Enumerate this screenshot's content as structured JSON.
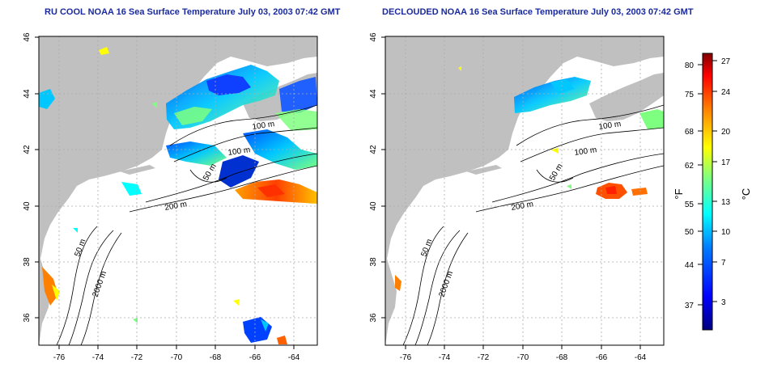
{
  "left_panel": {
    "title": "RU COOL NOAA 16 Sea Surface Temperature July 03, 2003 07:42 GMT",
    "x_ticks": [
      "-76",
      "-74",
      "-72",
      "-70",
      "-68",
      "-66",
      "-64"
    ],
    "y_ticks": [
      "46",
      "44",
      "42",
      "40",
      "38",
      "36"
    ],
    "contour_labels": [
      "100 m",
      "100 m",
      "50 m",
      "200 m",
      "50 m",
      "2000 m"
    ]
  },
  "right_panel": {
    "title": "DECLOUDED NOAA 16 Sea Surface Temperature July 03, 2003 07:42 GMT",
    "x_ticks": [
      "-76",
      "-74",
      "-72",
      "-70",
      "-68",
      "-66",
      "-64"
    ],
    "y_ticks": [
      "46",
      "44",
      "42",
      "40",
      "38",
      "36"
    ],
    "contour_labels": [
      "100 m",
      "100 m",
      "50 m",
      "200 m",
      "50 m",
      "2000 m"
    ]
  },
  "colorbar": {
    "fahrenheit_unit": "°F",
    "celsius_unit": "°C",
    "fahrenheit_ticks": [
      "80",
      "75",
      "68",
      "62",
      "55",
      "50",
      "44",
      "37"
    ],
    "celsius_ticks": [
      "27",
      "24",
      "20",
      "17",
      "13",
      "10",
      "7",
      "3"
    ],
    "colors": [
      "#00007f",
      "#0000ff",
      "#007fff",
      "#00ffff",
      "#7fff7f",
      "#ffff00",
      "#ff7f00",
      "#ff0000",
      "#7f0000"
    ]
  }
}
